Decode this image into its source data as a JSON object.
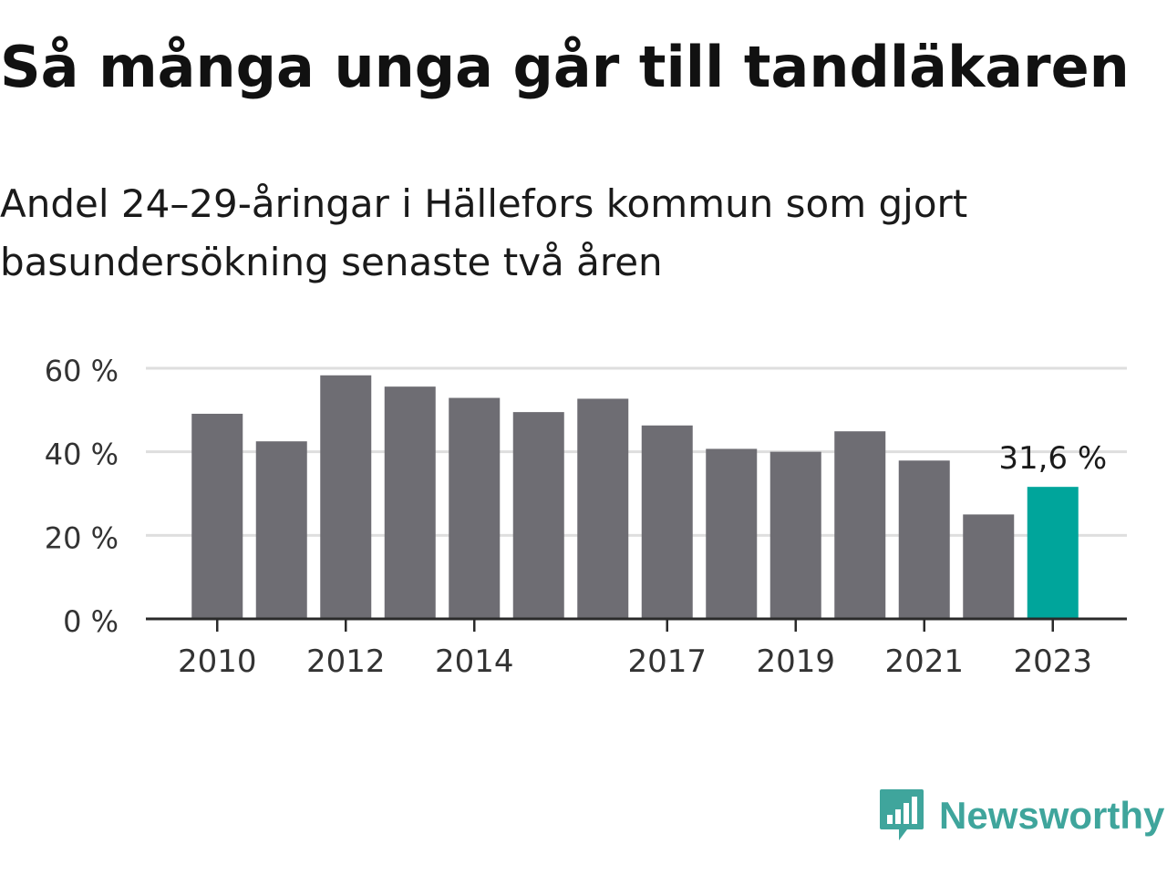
{
  "chart_data": {
    "type": "bar",
    "title": "Så många unga går till tandläkaren",
    "subtitle": "Andel 24–29-åringar i Hällefors kommun som gjort basundersökning senaste två åren",
    "categories": [
      "2010",
      "2011",
      "2012",
      "2013",
      "2014",
      "2015",
      "2016",
      "2017",
      "2018",
      "2019",
      "2020",
      "2021",
      "2022",
      "2023"
    ],
    "x_tick_labels": [
      "2010",
      "2012",
      "2014",
      "2017",
      "2019",
      "2021",
      "2023"
    ],
    "values": [
      49.1,
      42.5,
      58.3,
      55.6,
      52.9,
      49.5,
      52.7,
      46.3,
      40.7,
      40.0,
      44.9,
      37.9,
      25.0,
      31.6
    ],
    "value_unit": "%",
    "ylim": [
      0,
      60
    ],
    "y_ticks": [
      0,
      20,
      40,
      60
    ],
    "y_tick_labels": [
      "0 %",
      "20 %",
      "40 %",
      "60 %"
    ],
    "grid": true,
    "highlight": {
      "category": "2023",
      "label": "31,6 %"
    },
    "colors": {
      "bar": "#6e6d73",
      "highlight": "#00a59b",
      "grid": "#dedede",
      "axis": "#2a2a2a"
    }
  },
  "brand": {
    "name": "Newsworthy",
    "logo_icon": "bar-chart-speech-bubble-icon",
    "color": "#3fa59c"
  }
}
